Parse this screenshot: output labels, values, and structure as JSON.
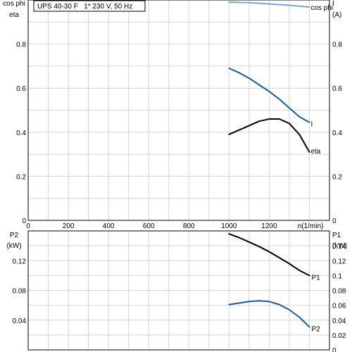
{
  "chart_data": [
    {
      "type": "line",
      "title": "UPS 40-30 F   1* 230 V, 50 Hz",
      "xlabel": "n(1/min)",
      "ylabel_left": [
        "cos phi",
        "eta"
      ],
      "ylabel_right": [
        "I",
        "(A)"
      ],
      "xlim": [
        0,
        1500
      ],
      "ylim": [
        0,
        1.0
      ],
      "x_ticks": [
        "0",
        "200",
        "400",
        "600",
        "800",
        "1000",
        "1200"
      ],
      "y_ticks": [
        "0",
        "0.2",
        "0.4",
        "0.6",
        "0.8"
      ],
      "y_ticks_right": [
        "0",
        "0.2",
        "0.4",
        "0.6",
        "0.8"
      ],
      "grid": true,
      "series": [
        {
          "name": "cos phi",
          "color": "#7ea3c8",
          "x": [
            1000,
            1100,
            1200,
            1300,
            1400
          ],
          "y": [
            0.99,
            0.988,
            0.982,
            0.976,
            0.968
          ]
        },
        {
          "name": "I",
          "color": "#1d5a94",
          "x": [
            1000,
            1050,
            1100,
            1150,
            1200,
            1250,
            1300,
            1350,
            1400
          ],
          "y": [
            0.69,
            0.67,
            0.645,
            0.615,
            0.585,
            0.55,
            0.51,
            0.47,
            0.445
          ]
        },
        {
          "name": "eta",
          "color": "#000000",
          "x": [
            1000,
            1050,
            1100,
            1150,
            1200,
            1250,
            1300,
            1350,
            1400
          ],
          "y": [
            0.39,
            0.41,
            0.43,
            0.45,
            0.46,
            0.46,
            0.44,
            0.39,
            0.31
          ]
        }
      ]
    },
    {
      "type": "line",
      "xlabel": "",
      "ylabel_left": [
        "P2",
        "(kW)"
      ],
      "ylabel_right": [
        "P1",
        "(kW)"
      ],
      "xlim": [
        0,
        1500
      ],
      "ylim": [
        0,
        0.16
      ],
      "y_ticks": [
        "0.04",
        "0.08",
        "0.12"
      ],
      "y_ticks_right": [
        "0",
        "0.02",
        "0.04",
        "0.06",
        "0.08",
        "0.1",
        "0.12",
        "0.14"
      ],
      "grid": true,
      "series": [
        {
          "name": "P1",
          "color": "#000000",
          "x": [
            1000,
            1050,
            1100,
            1150,
            1200,
            1250,
            1300,
            1350,
            1400
          ],
          "y": [
            0.156,
            0.151,
            0.145,
            0.139,
            0.132,
            0.124,
            0.116,
            0.107,
            0.1
          ]
        },
        {
          "name": "P2",
          "color": "#1d5a94",
          "x": [
            1000,
            1050,
            1100,
            1150,
            1200,
            1250,
            1300,
            1350,
            1400
          ],
          "y": [
            0.061,
            0.063,
            0.065,
            0.066,
            0.065,
            0.061,
            0.054,
            0.044,
            0.031
          ]
        }
      ]
    }
  ]
}
